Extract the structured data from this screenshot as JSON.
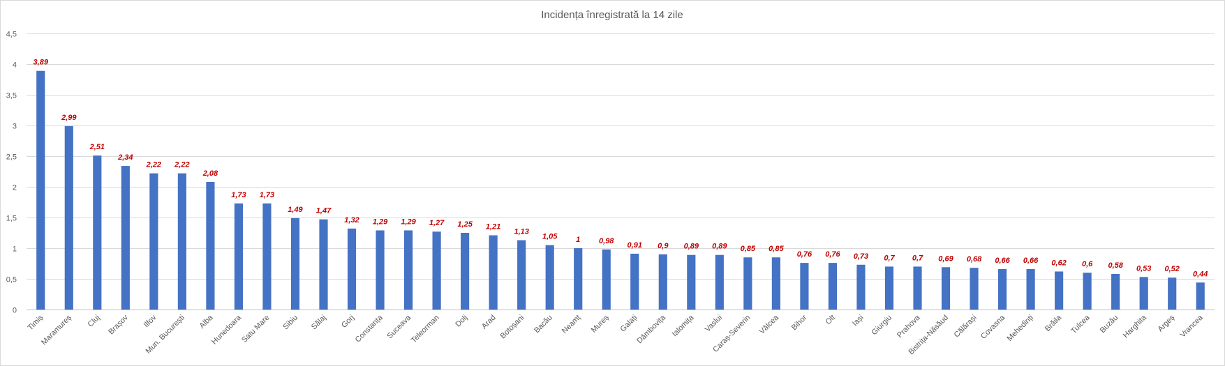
{
  "chart_data": {
    "type": "bar",
    "title": "Incidența înregistrată la 14 zile",
    "xlabel": "",
    "ylabel": "",
    "ylim": [
      0,
      4.5
    ],
    "yticks": [
      "0",
      "0,5",
      "1",
      "1,5",
      "2",
      "2,5",
      "3",
      "3,5",
      "4",
      "4,5"
    ],
    "ytick_values": [
      0,
      0.5,
      1,
      1.5,
      2,
      2.5,
      3,
      3.5,
      4,
      4.5
    ],
    "grid": true,
    "legend": "none",
    "bar_color": "#4472C4",
    "label_color": "#C00000",
    "categories": [
      "Timiș",
      "Maramureș",
      "Cluj",
      "Brașov",
      "Ilfov",
      "Mun. București",
      "Alba",
      "Hunedoara",
      "Satu Mare",
      "Sibiu",
      "Sălaj",
      "Gorj",
      "Constanța",
      "Suceava",
      "Teleorman",
      "Dolj",
      "Arad",
      "Botoșani",
      "Bacău",
      "Neamț",
      "Mureș",
      "Galați",
      "Dâmbovița",
      "Ialomița",
      "Vaslui",
      "Caraș-Severin",
      "Vâlcea",
      "Bihor",
      "Olt",
      "Iași",
      "Giurgiu",
      "Prahova",
      "Bistrița-Năsăud",
      "Călărași",
      "Covasna",
      "Mehedinți",
      "Brăila",
      "Tulcea",
      "Buzău",
      "Harghita",
      "Argeș",
      "Vrancea"
    ],
    "values": [
      3.89,
      2.99,
      2.51,
      2.34,
      2.22,
      2.22,
      2.08,
      1.73,
      1.73,
      1.49,
      1.47,
      1.32,
      1.29,
      1.29,
      1.27,
      1.25,
      1.21,
      1.13,
      1.05,
      1,
      0.98,
      0.91,
      0.9,
      0.89,
      0.89,
      0.85,
      0.85,
      0.76,
      0.76,
      0.73,
      0.7,
      0.7,
      0.69,
      0.68,
      0.66,
      0.66,
      0.62,
      0.6,
      0.58,
      0.53,
      0.52,
      0.44
    ],
    "data_labels": [
      "3,89",
      "2,99",
      "2,51",
      "2,34",
      "2,22",
      "2,22",
      "2,08",
      "1,73",
      "1,73",
      "1,49",
      "1,47",
      "1,32",
      "1,29",
      "1,29",
      "1,27",
      "1,25",
      "1,21",
      "1,13",
      "1,05",
      "1",
      "0,98",
      "0,91",
      "0,9",
      "0,89",
      "0,89",
      "0,85",
      "0,85",
      "0,76",
      "0,76",
      "0,73",
      "0,7",
      "0,7",
      "0,69",
      "0,68",
      "0,66",
      "0,66",
      "0,62",
      "0,6",
      "0,58",
      "0,53",
      "0,52",
      "0,44"
    ]
  }
}
